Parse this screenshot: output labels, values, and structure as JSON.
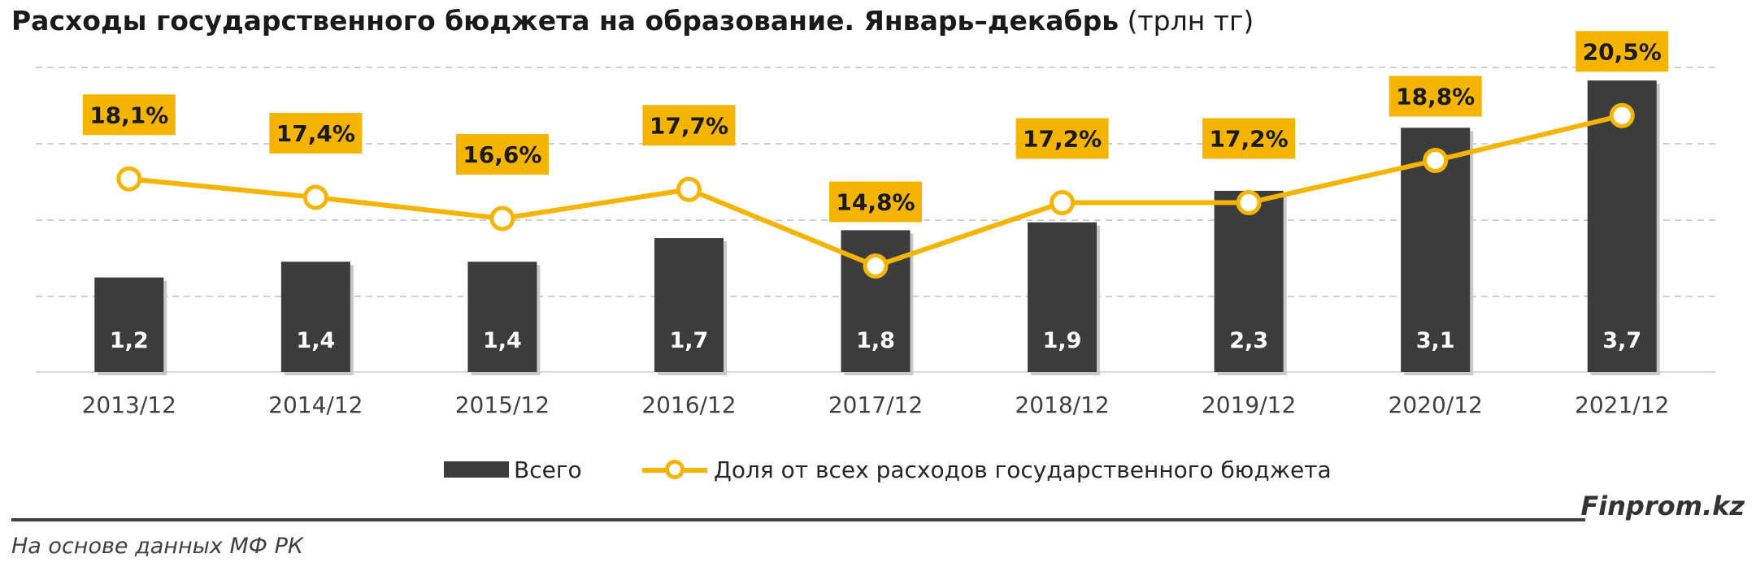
{
  "title_bold": "Расходы государственного бюджета на образование. Январь–декабрь",
  "title_unit": "(трлн тг)",
  "chart_data": {
    "type": "bar",
    "categories": [
      "2013/12",
      "2014/12",
      "2015/12",
      "2016/12",
      "2017/12",
      "2018/12",
      "2019/12",
      "2020/12",
      "2021/12"
    ],
    "series": [
      {
        "name": "Всего",
        "type": "bar",
        "values": [
          1.2,
          1.4,
          1.4,
          1.7,
          1.8,
          1.9,
          2.3,
          3.1,
          3.7
        ],
        "labels": [
          "1,2",
          "1,4",
          "1,4",
          "1,7",
          "1,8",
          "1,9",
          "2,3",
          "3,1",
          "3,7"
        ],
        "color": "#3c3c3c"
      },
      {
        "name": "Доля от всех расходов государственного бюджета",
        "type": "line",
        "axis": "secondary",
        "values": [
          18.1,
          17.4,
          16.6,
          17.7,
          14.8,
          17.2,
          17.2,
          18.8,
          20.5
        ],
        "labels": [
          "18,1%",
          "17,4%",
          "16,6%",
          "17,7%",
          "14,8%",
          "17,2%",
          "17,2%",
          "18,8%",
          "20,5%"
        ],
        "color": "#f4b400"
      }
    ],
    "legend": "bottom",
    "grid": true
  },
  "brand": "Finprom.kz",
  "source": "На основе данных МФ РК"
}
